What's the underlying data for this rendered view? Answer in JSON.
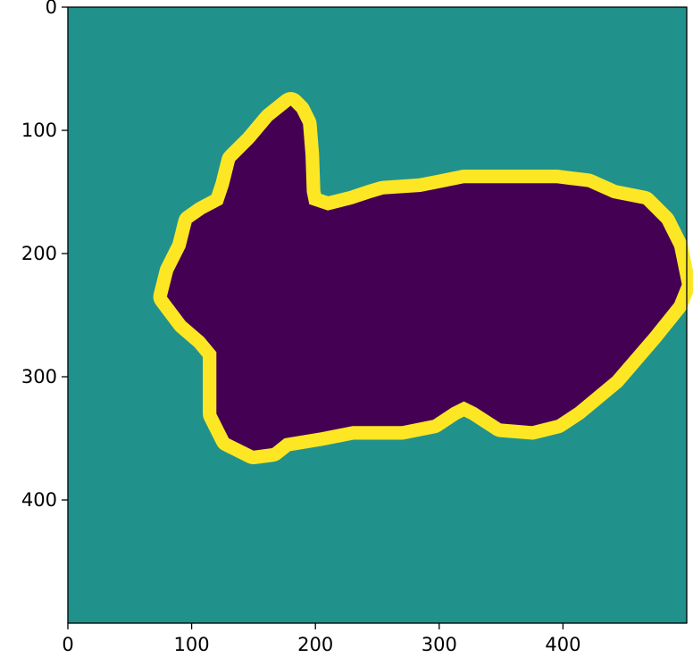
{
  "chart_data": {
    "type": "heatmap",
    "title": "",
    "xlabel": "",
    "ylabel": "",
    "xlim": [
      0,
      500
    ],
    "ylim": [
      500,
      0
    ],
    "x_ticks": [
      "0",
      "100",
      "200",
      "300",
      "400"
    ],
    "y_ticks": [
      "0",
      "100",
      "200",
      "300",
      "400"
    ],
    "x_tick_values": [
      0,
      100,
      200,
      300,
      400
    ],
    "y_tick_values": [
      0,
      100,
      200,
      300,
      400
    ],
    "grid": false,
    "legend": "none",
    "colormap": "viridis",
    "classes": [
      {
        "value": 0,
        "color": "#440154",
        "region": "interior"
      },
      {
        "value": 1,
        "color": "#21918c",
        "region": "background"
      },
      {
        "value": 2,
        "color": "#fde725",
        "region": "boundary"
      }
    ],
    "shape_outline": [
      [
        180,
        80
      ],
      [
        185,
        85
      ],
      [
        190,
        95
      ],
      [
        192,
        120
      ],
      [
        193,
        150
      ],
      [
        195,
        160
      ],
      [
        210,
        165
      ],
      [
        230,
        160
      ],
      [
        245,
        155
      ],
      [
        255,
        152
      ],
      [
        285,
        150
      ],
      [
        300,
        147
      ],
      [
        320,
        143
      ],
      [
        360,
        143
      ],
      [
        395,
        143
      ],
      [
        420,
        146
      ],
      [
        440,
        155
      ],
      [
        465,
        160
      ],
      [
        480,
        175
      ],
      [
        490,
        195
      ],
      [
        496,
        225
      ],
      [
        490,
        240
      ],
      [
        470,
        265
      ],
      [
        440,
        300
      ],
      [
        410,
        325
      ],
      [
        395,
        335
      ],
      [
        375,
        340
      ],
      [
        350,
        338
      ],
      [
        330,
        325
      ],
      [
        320,
        320
      ],
      [
        310,
        325
      ],
      [
        295,
        335
      ],
      [
        270,
        340
      ],
      [
        230,
        340
      ],
      [
        205,
        345
      ],
      [
        175,
        350
      ],
      [
        165,
        358
      ],
      [
        150,
        360
      ],
      [
        130,
        350
      ],
      [
        120,
        330
      ],
      [
        120,
        280
      ],
      [
        110,
        268
      ],
      [
        95,
        255
      ],
      [
        80,
        235
      ],
      [
        85,
        215
      ],
      [
        95,
        195
      ],
      [
        100,
        175
      ],
      [
        110,
        168
      ],
      [
        125,
        160
      ],
      [
        130,
        145
      ],
      [
        135,
        125
      ],
      [
        150,
        110
      ],
      [
        165,
        92
      ]
    ],
    "boundary_width": 22
  }
}
